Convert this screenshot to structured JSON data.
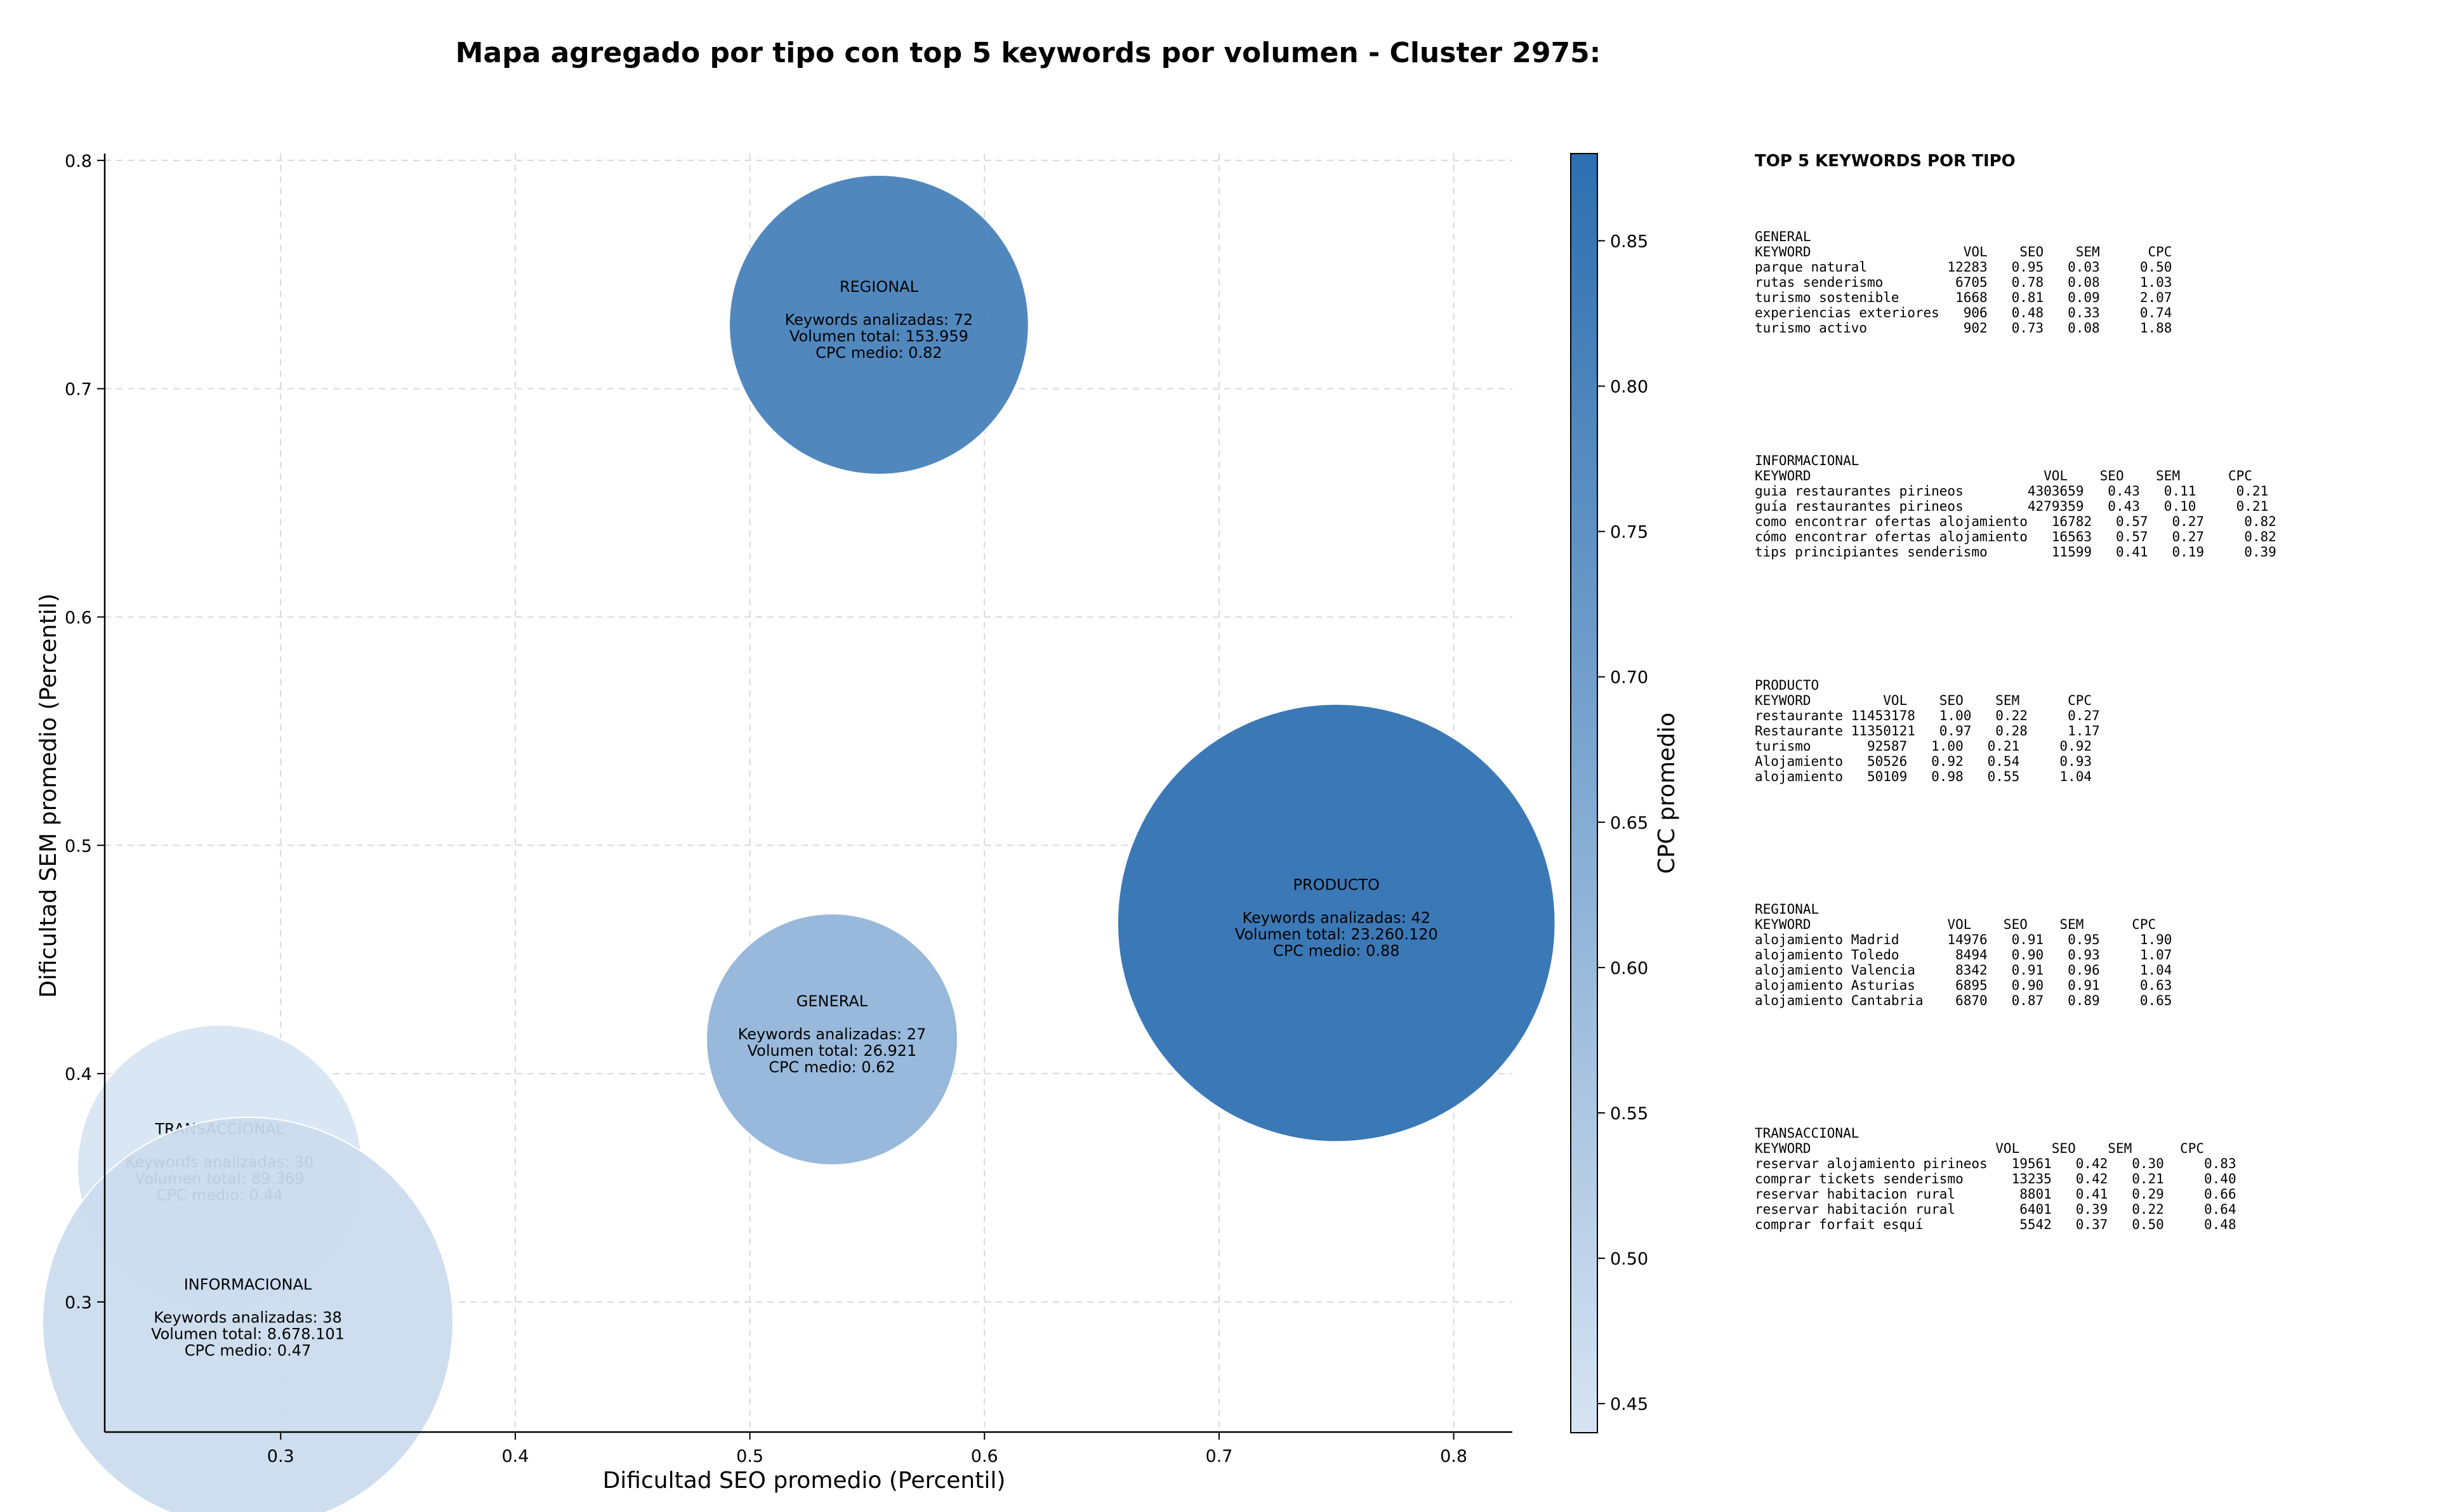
{
  "chart_data": {
    "type": "scatter",
    "title": "Mapa agregado por tipo con top 5 keywords por volumen - Cluster 2975:",
    "xlabel": "Dificultad SEO promedio (Percentil)",
    "ylabel": "Dificultad SEM promedio (Percentil)",
    "xlim": [
      0.225,
      0.825
    ],
    "ylim": [
      0.243,
      0.803
    ],
    "xticks": [
      "0.3",
      "0.4",
      "0.5",
      "0.6",
      "0.7",
      "0.8"
    ],
    "yticks": [
      "0.3",
      "0.4",
      "0.5",
      "0.6",
      "0.7",
      "0.8"
    ],
    "grid": true,
    "colorbar": {
      "label": "CPC promedio",
      "min": 0.44,
      "max": 0.88,
      "ticks": [
        "0.45",
        "0.50",
        "0.55",
        "0.60",
        "0.65",
        "0.70",
        "0.75",
        "0.80",
        "0.85"
      ],
      "color_low": "#d6e4f3",
      "color_high": "#2c6fb0"
    },
    "points": [
      {
        "tipo": "REGIONAL",
        "x": 0.555,
        "y": 0.728,
        "keywords_line": "Keywords analizadas: 72",
        "volumen_line": "Volumen total: 153.959",
        "cpc_line": "CPC medio: 0.82",
        "cpc": 0.82,
        "volume": 153959
      },
      {
        "tipo": "PRODUCTO",
        "x": 0.75,
        "y": 0.466,
        "keywords_line": "Keywords analizadas: 42",
        "volumen_line": "Volumen total: 23.260.120",
        "cpc_line": "CPC medio: 0.88",
        "cpc": 0.88,
        "volume": 23260120
      },
      {
        "tipo": "GENERAL",
        "x": 0.535,
        "y": 0.415,
        "keywords_line": "Keywords analizadas: 27",
        "volumen_line": "Volumen total: 26.921",
        "cpc_line": "CPC medio: 0.62",
        "cpc": 0.62,
        "volume": 26921
      },
      {
        "tipo": "TRANSACCIONAL",
        "x": 0.274,
        "y": 0.359,
        "keywords_line": "Keywords analizadas: 30",
        "volumen_line": "Volumen total: 89.369",
        "cpc_line": "CPC medio: 0.44",
        "cpc": 0.44,
        "volume": 89369
      },
      {
        "tipo": "INFORMACIONAL",
        "x": 0.286,
        "y": 0.291,
        "keywords_line": "Keywords analizadas: 38",
        "volumen_line": "Volumen total: 8.678.101",
        "cpc_line": "CPC medio: 0.47",
        "cpc": 0.47,
        "volume": 8678101
      }
    ]
  },
  "side_panel": {
    "heading": "TOP 5 KEYWORDS POR TIPO",
    "sections": [
      {
        "tipo": "GENERAL",
        "header": "KEYWORD                   VOL    SEO    SEM      CPC",
        "rows": [
          "parque natural          12283   0.95   0.03     0.50",
          "rutas senderismo         6705   0.78   0.08     1.03",
          "turismo sostenible       1668   0.81   0.09     2.07",
          "experiencias exteriores   906   0.48   0.33     0.74",
          "turismo activo            902   0.73   0.08     1.88"
        ]
      },
      {
        "tipo": "INFORMACIONAL",
        "header": "KEYWORD                             VOL    SEO    SEM      CPC",
        "rows": [
          "guia restaurantes pirineos        4303659   0.43   0.11     0.21",
          "guía restaurantes pirineos        4279359   0.43   0.10     0.21",
          "como encontrar ofertas alojamiento   16782   0.57   0.27     0.82",
          "cómo encontrar ofertas alojamiento   16563   0.57   0.27     0.82",
          "tips principiantes senderismo        11599   0.41   0.19     0.39"
        ]
      },
      {
        "tipo": "PRODUCTO",
        "header": "KEYWORD         VOL    SEO    SEM      CPC",
        "rows": [
          "restaurante 11453178   1.00   0.22     0.27",
          "Restaurante 11350121   0.97   0.28     1.17",
          "turismo       92587   1.00   0.21     0.92",
          "Alojamiento   50526   0.92   0.54     0.93",
          "alojamiento   50109   0.98   0.55     1.04"
        ]
      },
      {
        "tipo": "REGIONAL",
        "header": "KEYWORD                 VOL    SEO    SEM      CPC",
        "rows": [
          "alojamiento Madrid      14976   0.91   0.95     1.90",
          "alojamiento Toledo       8494   0.90   0.93     1.07",
          "alojamiento Valencia     8342   0.91   0.96     1.04",
          "alojamiento Asturias     6895   0.90   0.91     0.63",
          "alojamiento Cantabria    6870   0.87   0.89     0.65"
        ]
      },
      {
        "tipo": "TRANSACCIONAL",
        "header": "KEYWORD                       VOL    SEO    SEM      CPC",
        "rows": [
          "reservar alojamiento pirineos   19561   0.42   0.30     0.83",
          "comprar tickets senderismo      13235   0.42   0.21     0.40",
          "reservar habitacion rural        8801   0.41   0.29     0.66",
          "reservar habitación rural        6401   0.39   0.22     0.64",
          "comprar forfait esquí            5542   0.37   0.50     0.48"
        ]
      }
    ]
  }
}
